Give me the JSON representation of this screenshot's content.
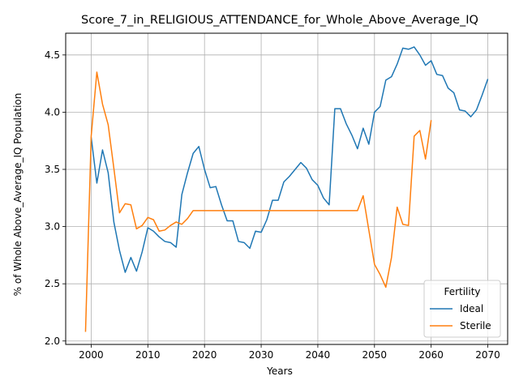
{
  "chart_data": {
    "type": "line",
    "title": "Score_7_in_RELIGIOUS_ATTENDANCE_for_Whole_Above_Average_IQ",
    "xlabel": "Years",
    "ylabel": "% of Whole Above_Average_IQ Population",
    "xlim": [
      1995.5,
      2073.5
    ],
    "ylim": [
      1.97,
      4.69
    ],
    "xticks": [
      2000,
      2010,
      2020,
      2030,
      2040,
      2050,
      2060,
      2070
    ],
    "yticks": [
      2.0,
      2.5,
      3.0,
      3.5,
      4.0,
      4.5
    ],
    "ytick_labels": [
      "2.0",
      "2.5",
      "3.0",
      "3.5",
      "4.0",
      "4.5"
    ],
    "grid": true,
    "legend": {
      "title": "Fertility",
      "placement": "lower-right"
    },
    "series": [
      {
        "name": "Ideal",
        "color": "#1f77b4",
        "x": [
          2000,
          2001,
          2002,
          2003,
          2004,
          2005,
          2006,
          2007,
          2008,
          2009,
          2010,
          2011,
          2012,
          2013,
          2014,
          2015,
          2016,
          2017,
          2018,
          2019,
          2020,
          2021,
          2022,
          2023,
          2024,
          2025,
          2026,
          2027,
          2028,
          2029,
          2030,
          2031,
          2032,
          2033,
          2034,
          2035,
          2036,
          2037,
          2038,
          2039,
          2040,
          2041,
          2042,
          2043,
          2044,
          2045,
          2046,
          2047,
          2048,
          2049,
          2050,
          2051,
          2052,
          2053,
          2054,
          2055,
          2056,
          2057,
          2058,
          2059,
          2060,
          2061,
          2062,
          2063,
          2064,
          2065,
          2066,
          2067,
          2068,
          2069,
          2070
        ],
        "values": [
          3.78,
          3.38,
          3.67,
          3.47,
          3.04,
          2.79,
          2.6,
          2.73,
          2.61,
          2.78,
          2.99,
          2.96,
          2.91,
          2.87,
          2.86,
          2.82,
          3.28,
          3.47,
          3.64,
          3.7,
          3.5,
          3.34,
          3.35,
          3.19,
          3.05,
          3.05,
          2.87,
          2.86,
          2.81,
          2.96,
          2.95,
          3.06,
          3.23,
          3.23,
          3.39,
          3.44,
          3.5,
          3.56,
          3.51,
          3.41,
          3.36,
          3.25,
          3.19,
          4.03,
          4.03,
          3.9,
          3.8,
          3.68,
          3.86,
          3.72,
          4.0,
          4.05,
          4.28,
          4.31,
          4.42,
          4.56,
          4.55,
          4.57,
          4.5,
          4.41,
          4.45,
          4.33,
          4.32,
          4.21,
          4.17,
          4.02,
          4.01,
          3.96,
          4.02,
          4.15,
          4.29
        ]
      },
      {
        "name": "Sterile",
        "color": "#ff7f0e",
        "x": [
          1999,
          2000,
          2001,
          2002,
          2003,
          2004,
          2005,
          2006,
          2007,
          2008,
          2009,
          2010,
          2011,
          2012,
          2013,
          2014,
          2015,
          2016,
          2017,
          2018,
          2019,
          2020,
          2021,
          2022,
          2023,
          2024,
          2025,
          2026,
          2027,
          2028,
          2029,
          2030,
          2031,
          2032,
          2033,
          2034,
          2035,
          2036,
          2037,
          2038,
          2039,
          2040,
          2041,
          2042,
          2043,
          2044,
          2045,
          2046,
          2047,
          2048,
          2049,
          2050,
          2051,
          2052,
          2053,
          2054,
          2055,
          2056,
          2057,
          2058,
          2059,
          2060
        ],
        "values": [
          2.08,
          3.79,
          4.35,
          4.07,
          3.89,
          3.51,
          3.12,
          3.2,
          3.19,
          2.98,
          3.01,
          3.08,
          3.06,
          2.96,
          2.97,
          3.01,
          3.04,
          3.02,
          3.07,
          3.14,
          3.14,
          3.14,
          3.14,
          3.14,
          3.14,
          3.14,
          3.14,
          3.14,
          3.14,
          3.14,
          3.14,
          3.14,
          3.14,
          3.14,
          3.14,
          3.14,
          3.14,
          3.14,
          3.14,
          3.14,
          3.14,
          3.14,
          3.14,
          3.14,
          3.14,
          3.14,
          3.14,
          3.14,
          3.14,
          3.27,
          2.97,
          2.67,
          2.58,
          2.47,
          2.73,
          3.17,
          3.02,
          3.01,
          3.79,
          3.84,
          3.59,
          3.93
        ]
      }
    ]
  }
}
